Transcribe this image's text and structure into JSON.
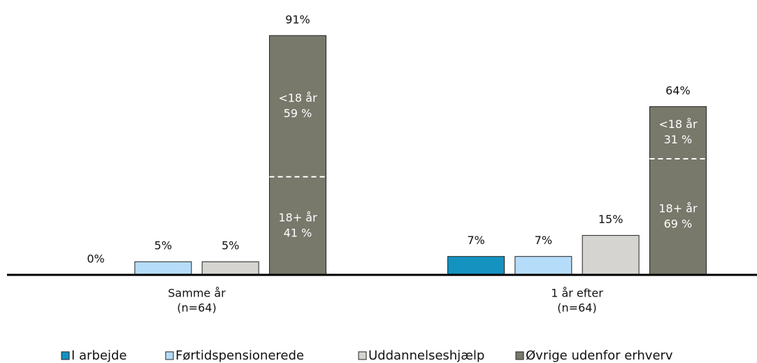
{
  "chart_data": {
    "type": "bar",
    "categories": [
      [
        "Samme år",
        "(n=64)"
      ],
      [
        "1 år efter",
        "(n=64)"
      ]
    ],
    "series": [
      {
        "name": "I arbejde",
        "color": "#1492c0",
        "values": [
          0,
          7
        ],
        "value_labels": [
          "0%",
          "7%"
        ]
      },
      {
        "name": "Førtidspensionerede",
        "color": "#b5ddfa",
        "values": [
          5,
          7
        ],
        "value_labels": [
          "5%",
          "7%"
        ]
      },
      {
        "name": "Uddannelseshjælp",
        "color": "#d6d4d0",
        "values": [
          5,
          15
        ],
        "value_labels": [
          "5%",
          "15%"
        ]
      },
      {
        "name": "Øvrige udenfor erhverv",
        "color": "#78786b",
        "values": [
          91,
          64
        ],
        "value_labels": [
          "91%",
          "64%"
        ]
      }
    ],
    "annotations": [
      {
        "series": 3,
        "category": 0,
        "segments": [
          {
            "label": "18+ år",
            "value": 41,
            "value_label": "41 %"
          },
          {
            "label": "<18 år",
            "value": 59,
            "value_label": "59 %"
          }
        ]
      },
      {
        "series": 3,
        "category": 1,
        "segments": [
          {
            "label": "18+ år",
            "value": 69,
            "value_label": "69 %"
          },
          {
            "label": "<18 år",
            "value": 31,
            "value_label": "31 %"
          }
        ]
      }
    ],
    "ylim": [
      0,
      100
    ],
    "legend": "bottom"
  }
}
